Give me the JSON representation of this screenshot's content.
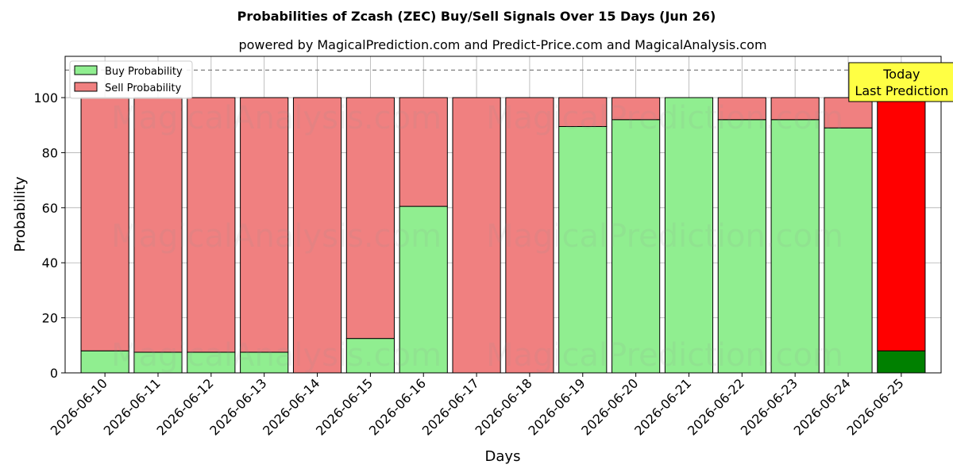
{
  "chart_data": {
    "type": "bar",
    "stacked": true,
    "title": "Probabilities of Zcash (ZEC) Buy/Sell Signals Over 15 Days (Jun 26)",
    "subtitle": "powered by MagicalPrediction.com and Predict-Price.com and MagicalAnalysis.com",
    "xlabel": "Days",
    "ylabel": "Probability",
    "ylim": [
      0,
      115
    ],
    "yticks": [
      0,
      20,
      40,
      60,
      80,
      100
    ],
    "grid": true,
    "legend_position": "top-left",
    "reference_line": 110,
    "categories": [
      "2026-06-10",
      "2026-06-11",
      "2026-06-12",
      "2026-06-13",
      "2026-06-14",
      "2026-06-15",
      "2026-06-16",
      "2026-06-17",
      "2026-06-18",
      "2026-06-19",
      "2026-06-20",
      "2026-06-21",
      "2026-06-22",
      "2026-06-23",
      "2026-06-24",
      "2026-06-25"
    ],
    "series": [
      {
        "name": "Buy Probability",
        "color": "#90ee90",
        "values": [
          8,
          7.5,
          7.5,
          7.5,
          0,
          12.5,
          60.5,
          0,
          0,
          89.5,
          92,
          100,
          92,
          92,
          89,
          8
        ]
      },
      {
        "name": "Sell Probability",
        "color": "#f08080",
        "values": [
          92,
          92.5,
          92.5,
          92.5,
          100,
          87.5,
          39.5,
          100,
          100,
          10.5,
          8,
          0,
          8,
          8,
          11,
          92
        ]
      }
    ],
    "highlight": {
      "index": 15,
      "buy_color": "#008000",
      "sell_color": "#ff0000",
      "label_line1": "Today",
      "label_line2": "Last Prediction",
      "box_color": "#ffff44"
    },
    "watermarks": [
      "MagicalAnalysis.com",
      "MagicalPrediction.com"
    ]
  }
}
